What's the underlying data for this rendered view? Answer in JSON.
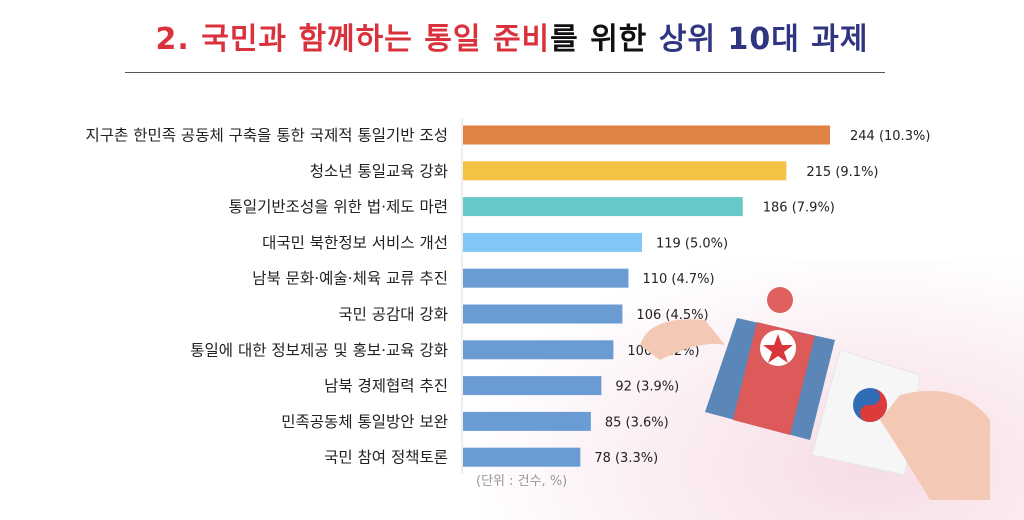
{
  "title": {
    "part1": "2. 국민과 함께하는 통일 준비",
    "part2": "를 위한 ",
    "part3": "상위 10대 과제"
  },
  "unit_note": "(단위 : 건수, %)",
  "chart_data": {
    "type": "bar",
    "orientation": "horizontal",
    "title": "2. 국민과 함께하는 통일 준비를 위한 상위 10대 과제",
    "categories": [
      "지구촌 한민족 공동체 구축을 통한 국제적 통일기반 조성",
      "청소년 통일교육 강화",
      "통일기반조성을 위한 법·제도 마련",
      "대국민 북한정보 서비스 개선",
      "남북 문화·예술·체육 교류 추진",
      "국민 공감대 강화",
      "통일에 대한 정보제공 및 홍보·교육 강화",
      "남북 경제협력 추진",
      "민족공동체 통일방안 보완",
      "국민 참여 정책토론"
    ],
    "values": [
      244,
      215,
      186,
      119,
      110,
      106,
      100,
      92,
      85,
      78
    ],
    "percents": [
      "10.3%",
      "9.1%",
      "7.9%",
      "5.0%",
      "4.7%",
      "4.5%",
      "4.2%",
      "3.9%",
      "3.6%",
      "3.3%"
    ],
    "data_labels": [
      "244 (10.3%)",
      "215 (9.1%)",
      "186 (7.9%)",
      "119 (5.0%)",
      "110 (4.7%)",
      "106 (4.5%)",
      "100 (4.2%)",
      "92 (3.9%)",
      "85 (3.6%)",
      "78 (3.3%)"
    ],
    "colors": [
      "#e08243",
      "#f4c343",
      "#66c8c8",
      "#80c6f6",
      "#6a9bd2",
      "#6a9bd2",
      "#6a9bd2",
      "#6a9bd2",
      "#6a9bd2",
      "#6a9bd2"
    ],
    "xlabel": "",
    "ylabel": "",
    "grid": false
  }
}
